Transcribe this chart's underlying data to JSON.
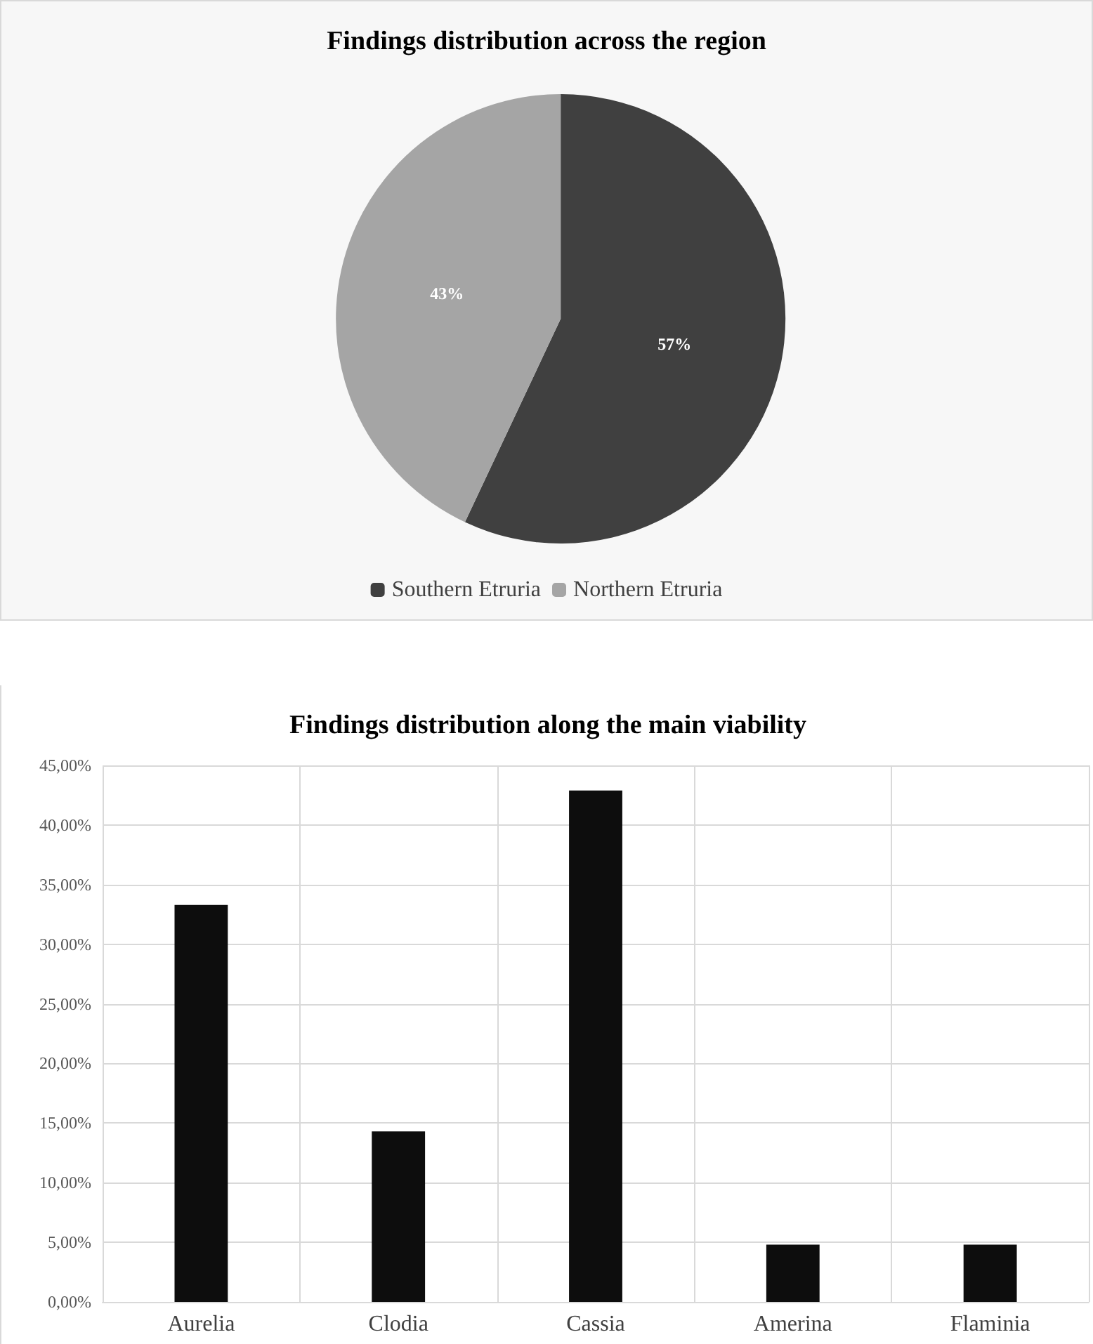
{
  "chart_data": [
    {
      "type": "pie",
      "title": "Findings distribution across the region",
      "categories": [
        "Southern Etruria",
        "Northern Etruria"
      ],
      "values": [
        57,
        43
      ],
      "colors": [
        "#404040",
        "#a5a5a5"
      ],
      "value_labels": [
        "57%",
        "43%"
      ],
      "legend": "bottom"
    },
    {
      "type": "bar",
      "title": "Findings distribution along the main viability",
      "categories": [
        "Aurelia",
        "Clodia",
        "Cassia",
        "Amerina",
        "Flaminia"
      ],
      "values": [
        33.3,
        14.3,
        42.9,
        4.8,
        4.8
      ],
      "color": "#0d0d0d",
      "ylim": [
        0,
        45
      ],
      "yticks": [
        {
          "value": 0,
          "label": "0,00%"
        },
        {
          "value": 5,
          "label": "5,00%"
        },
        {
          "value": 10,
          "label": "10,00%"
        },
        {
          "value": 15,
          "label": "15,00%"
        },
        {
          "value": 20,
          "label": "20,00%"
        },
        {
          "value": 25,
          "label": "25,00%"
        },
        {
          "value": 30,
          "label": "30,00%"
        },
        {
          "value": 35,
          "label": "35,00%"
        },
        {
          "value": 40,
          "label": "40,00%"
        },
        {
          "value": 45,
          "label": "45,00%"
        }
      ],
      "grid": true,
      "legend": false
    }
  ]
}
